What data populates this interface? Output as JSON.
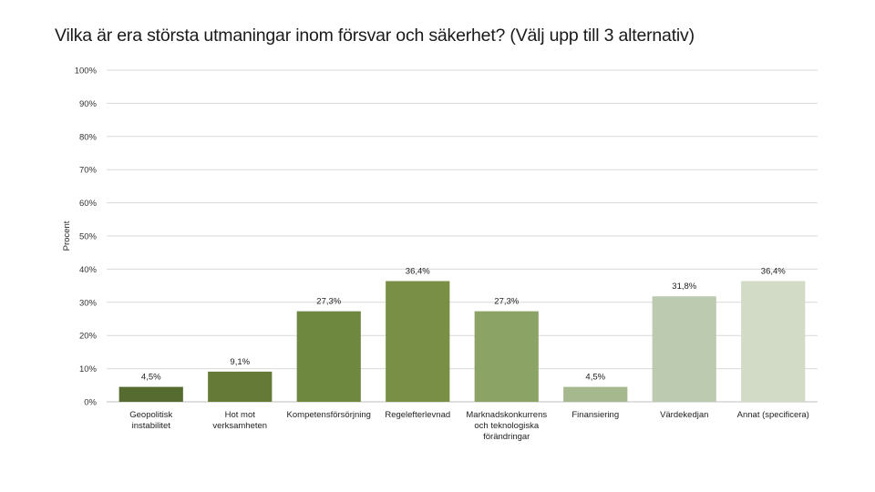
{
  "chart_data": {
    "type": "bar",
    "title": "Vilka är era största utmaningar inom försvar och säkerhet? (Välj upp till 3 alternativ)",
    "ylabel": "Procent",
    "xlabel": "",
    "ylim": [
      0,
      100
    ],
    "y_ticks": [
      "0%",
      "10%",
      "20%",
      "30%",
      "40%",
      "50%",
      "60%",
      "70%",
      "80%",
      "90%",
      "100%"
    ],
    "grid": true,
    "categories": [
      [
        "Geopolitisk",
        "instabilitet"
      ],
      [
        "Hot mot",
        "verksamheten"
      ],
      [
        "Kompetensförsörjning"
      ],
      [
        "Regelefterlevnad"
      ],
      [
        "Marknadskonkurrens",
        "och teknologiska",
        "förändringar"
      ],
      [
        "Finansiering"
      ],
      [
        "Värdekedjan"
      ],
      [
        "Annat (specificera)"
      ]
    ],
    "values": [
      4.5,
      9.1,
      27.3,
      36.4,
      27.3,
      4.5,
      31.8,
      36.4
    ],
    "value_labels": [
      "4,5%",
      "9,1%",
      "27,3%",
      "36,4%",
      "27,3%",
      "4,5%",
      "31,8%",
      "36,4%"
    ],
    "colors": [
      "#556b2f",
      "#647a36",
      "#6e8840",
      "#788f45",
      "#8ca366",
      "#a5b88e",
      "#bccaaf",
      "#d1dbc6"
    ]
  }
}
